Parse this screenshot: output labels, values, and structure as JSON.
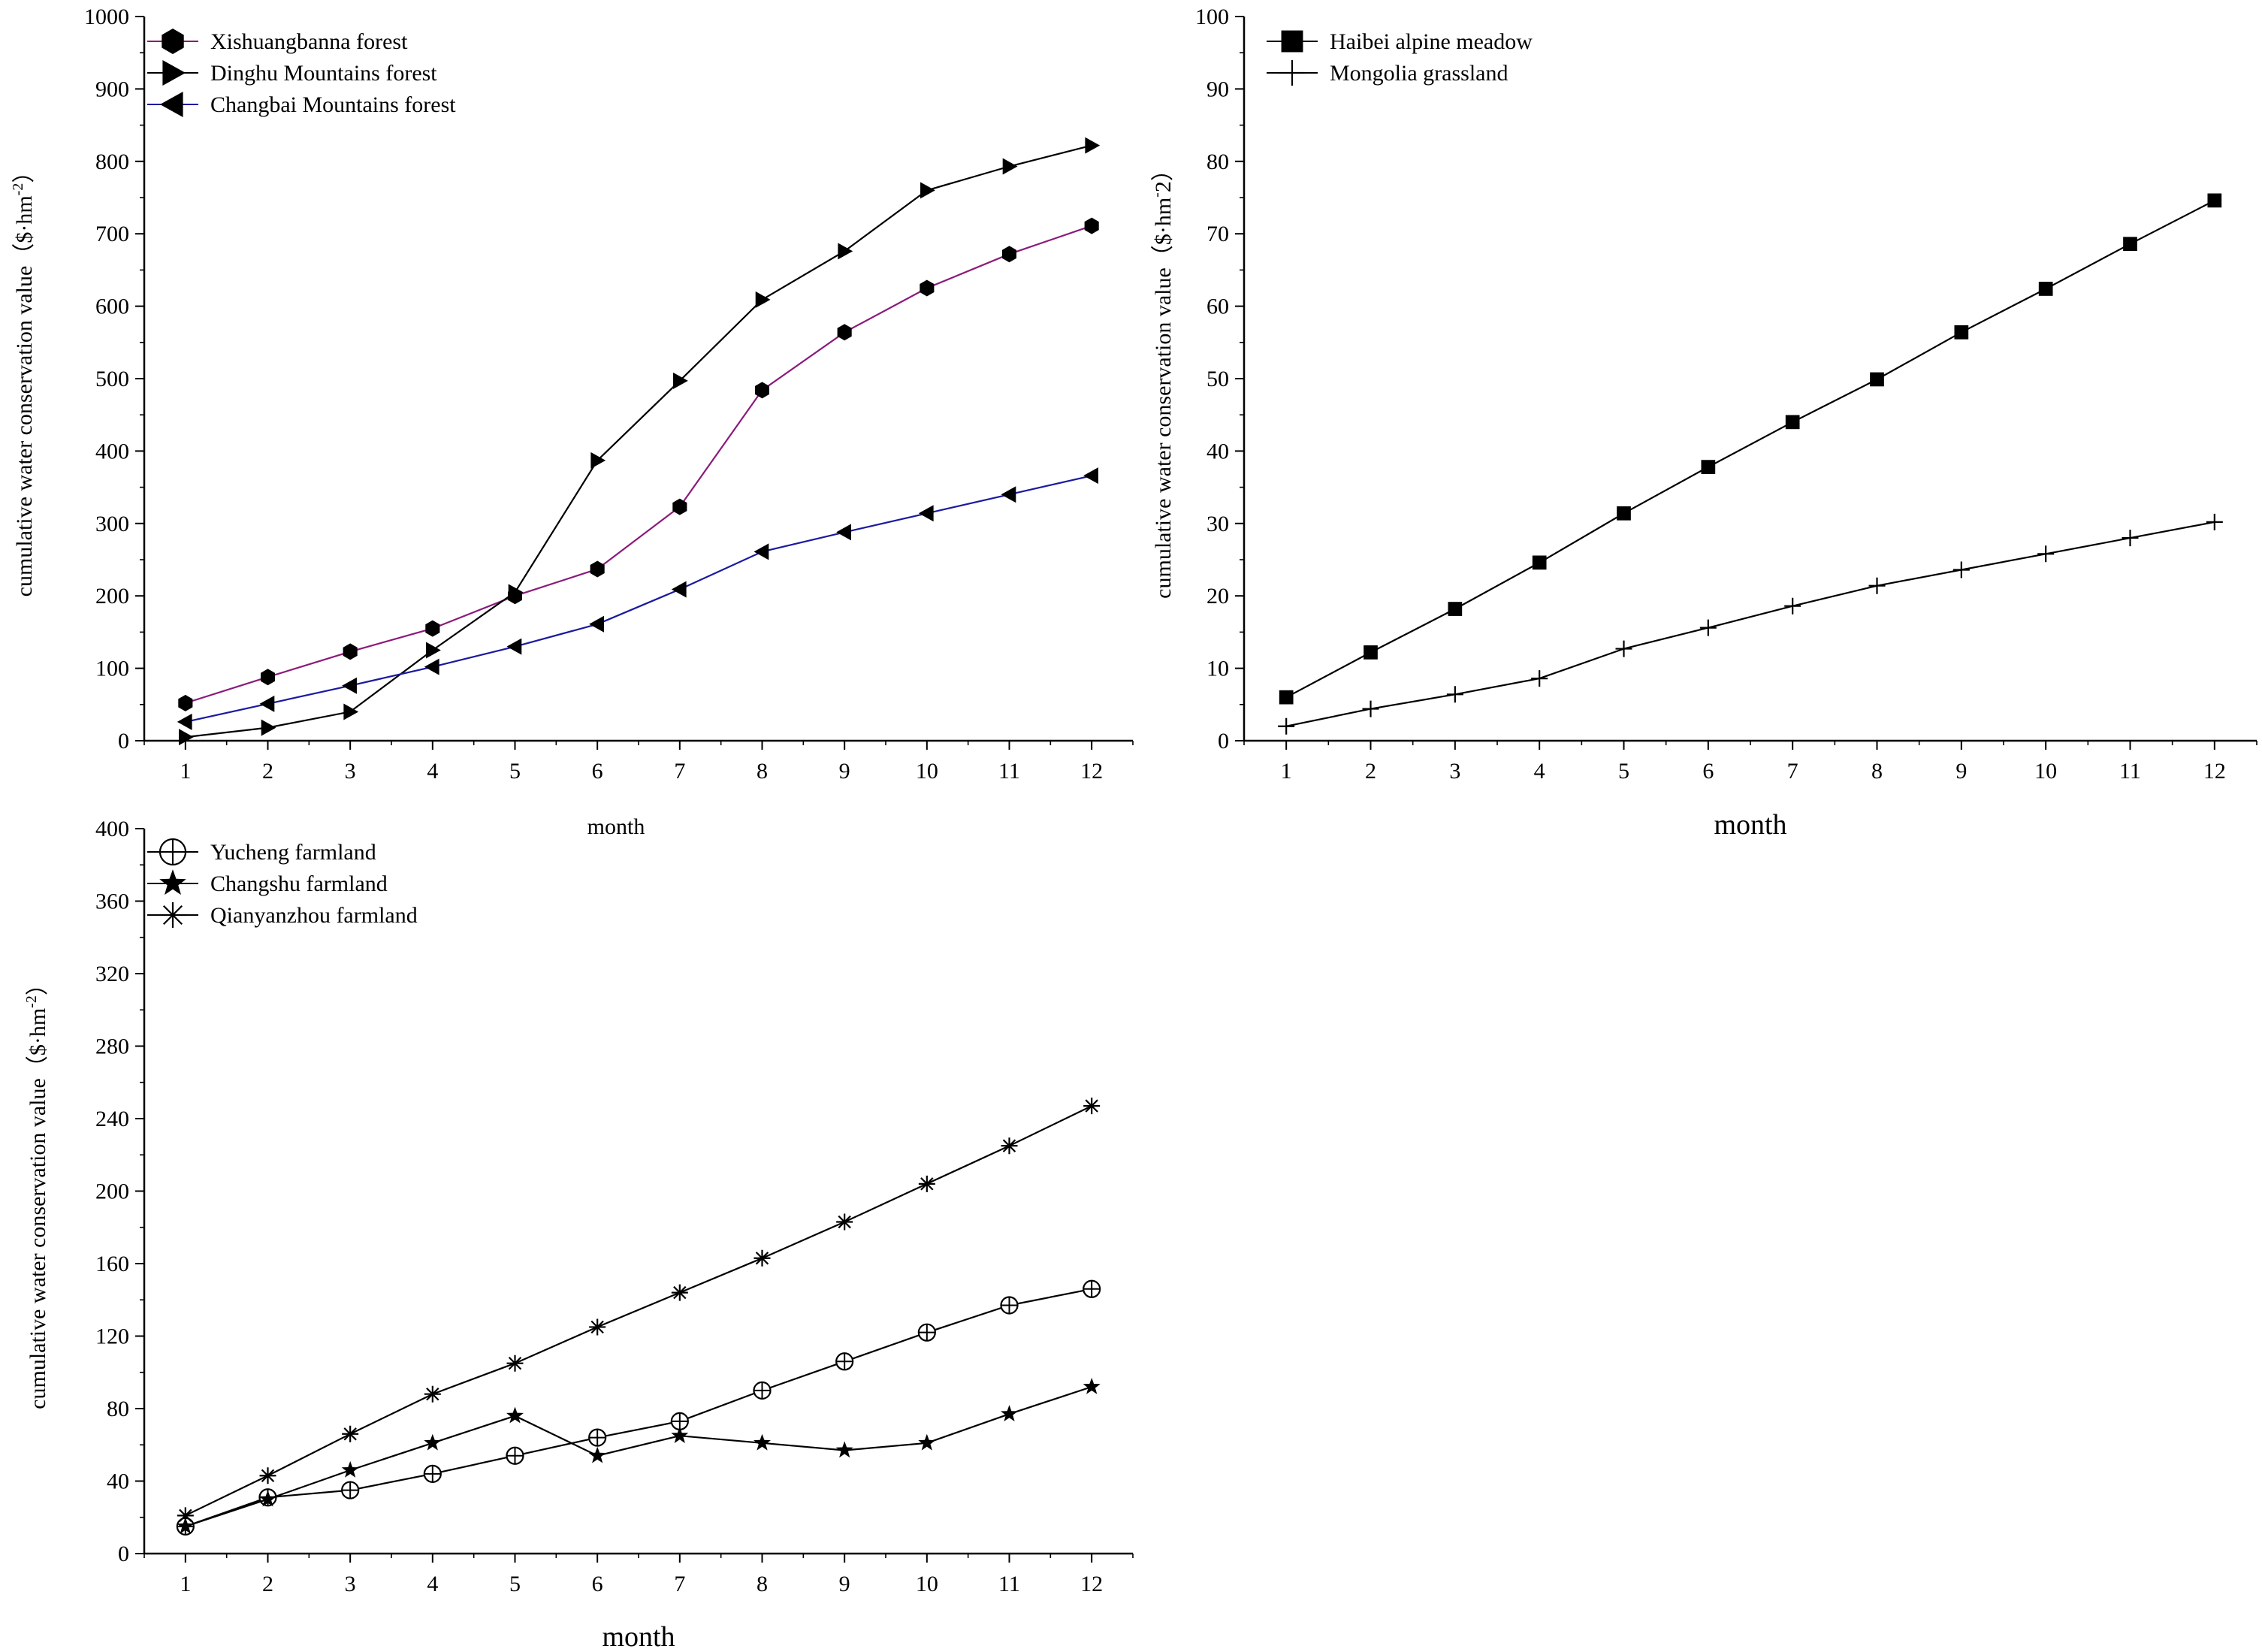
{
  "figure": {
    "colors": {
      "ink": "#000000",
      "magenta": "#8b1a7a",
      "blue": "#1a1aa0"
    }
  },
  "chart_data": [
    {
      "type": "line",
      "id": "forest",
      "title": "",
      "xlabel": "month",
      "ylabel": "cumulative water conservation value（$·hm",
      "ylabel_sup": "-2",
      "ylabel_end": "）",
      "x": [
        1,
        2,
        3,
        4,
        5,
        6,
        7,
        8,
        9,
        10,
        11,
        12
      ],
      "xlim": [
        0.5,
        12.5
      ],
      "ylim": [
        0,
        1000
      ],
      "yticks": [
        0,
        100,
        200,
        300,
        400,
        500,
        600,
        700,
        800,
        900,
        1000
      ],
      "legend_position": "top-left",
      "series": [
        {
          "name": "Xishuangbanna forest",
          "marker": "hexagon",
          "color": "#8b1a7a",
          "values": [
            52,
            88,
            123,
            155,
            200,
            237,
            323,
            484,
            564,
            625,
            672,
            711
          ]
        },
        {
          "name": "Dinghu Mountains forest",
          "marker": "triangle-right",
          "color": "#000000",
          "values": [
            5,
            18,
            40,
            125,
            205,
            387,
            497,
            609,
            676,
            760,
            793,
            822
          ]
        },
        {
          "name": "Changbai Mountains forest",
          "marker": "triangle-left",
          "color": "#1a1aa0",
          "values": [
            26,
            51,
            76,
            102,
            130,
            161,
            209,
            261,
            288,
            314,
            340,
            366
          ]
        }
      ]
    },
    {
      "type": "line",
      "id": "grassland",
      "title": "",
      "xlabel": "month",
      "ylabel": "cumulative water conservation value（$·hm",
      "ylabel_sup": "-",
      "ylabel_end": "2）",
      "x": [
        1,
        2,
        3,
        4,
        5,
        6,
        7,
        8,
        9,
        10,
        11,
        12
      ],
      "xlim": [
        0.5,
        12.5
      ],
      "ylim": [
        0,
        100
      ],
      "yticks": [
        0,
        10,
        20,
        30,
        40,
        50,
        60,
        70,
        80,
        90,
        100
      ],
      "legend_position": "top-left",
      "series": [
        {
          "name": "Haibei alpine meadow",
          "marker": "square",
          "color": "#000000",
          "values": [
            6.0,
            12.2,
            18.2,
            24.6,
            31.4,
            37.8,
            44.0,
            49.9,
            56.4,
            62.4,
            68.6,
            74.6
          ]
        },
        {
          "name": "Mongolia grassland",
          "marker": "plus",
          "color": "#000000",
          "values": [
            2.0,
            4.4,
            6.4,
            8.6,
            12.7,
            15.6,
            18.6,
            21.4,
            23.6,
            25.8,
            28.0,
            30.2
          ]
        }
      ]
    },
    {
      "type": "line",
      "id": "farmland",
      "title": "",
      "xlabel": "month",
      "ylabel": "cumulative water conservation value（$·hm",
      "ylabel_sup": "-2",
      "ylabel_end": "）",
      "x": [
        1,
        2,
        3,
        4,
        5,
        6,
        7,
        8,
        9,
        10,
        11,
        12
      ],
      "xlim": [
        0.5,
        12.5
      ],
      "ylim": [
        0,
        400
      ],
      "yticks": [
        0,
        40,
        80,
        120,
        160,
        200,
        240,
        280,
        320,
        360,
        400
      ],
      "legend_position": "top-left",
      "series": [
        {
          "name": "Yucheng farmland",
          "marker": "circle-plus",
          "color": "#000000",
          "values": [
            15,
            31,
            35,
            44,
            54,
            64,
            73,
            90,
            106,
            122,
            137,
            146
          ]
        },
        {
          "name": "Changshu farmland",
          "marker": "star",
          "color": "#000000",
          "values": [
            15,
            30,
            46,
            61,
            76,
            54,
            65,
            61,
            57,
            61,
            77,
            92
          ]
        },
        {
          "name": "Qianyanzhou farmland",
          "marker": "asterisk",
          "color": "#000000",
          "values": [
            21,
            43,
            66,
            88,
            105,
            125,
            144,
            163,
            183,
            204,
            225,
            247
          ]
        }
      ]
    }
  ]
}
